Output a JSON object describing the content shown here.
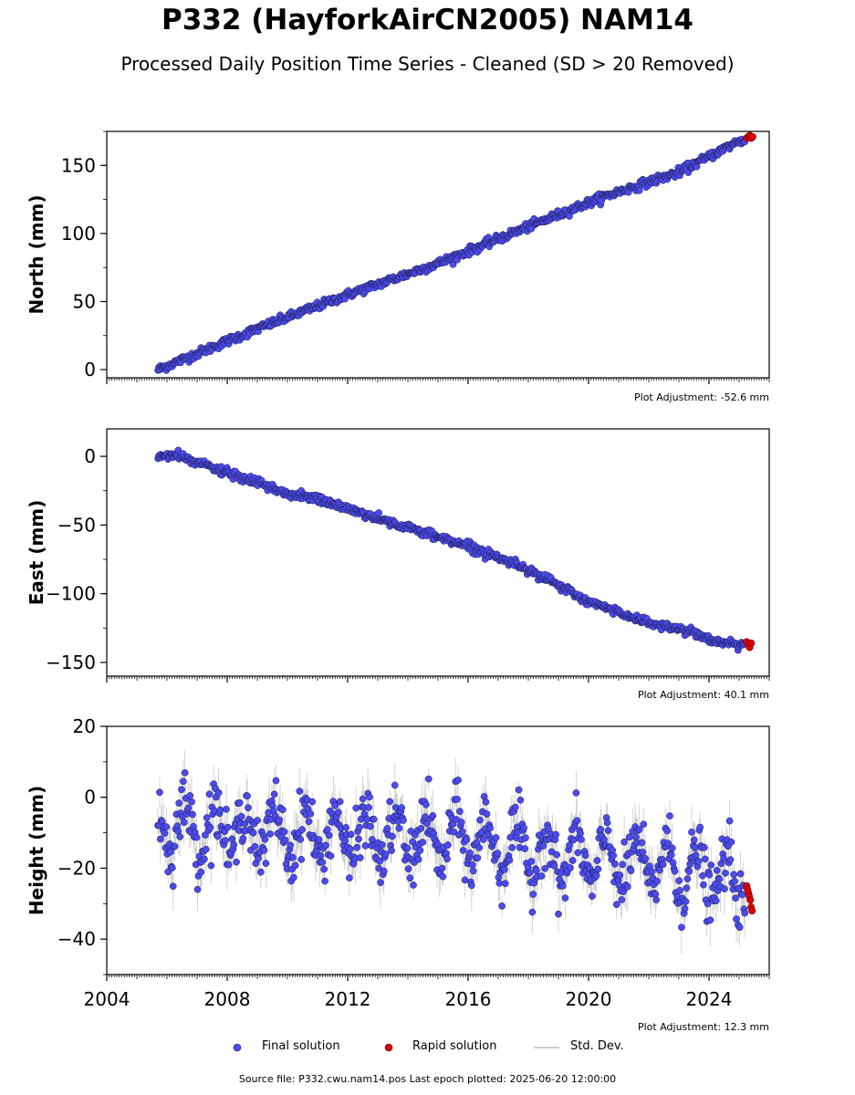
{
  "title": "P332 (HayforkAirCN2005) NAM14",
  "subtitle": "Processed Daily Position Time Series - Cleaned (SD > 20 Removed)",
  "source": "Source file: P332.cwu.nam14.pos  Last epoch plotted: 2025-06-20 12:00:00",
  "legend": {
    "final": "Final solution",
    "rapid": "Rapid solution",
    "std": "Std. Dev."
  },
  "colors": {
    "final": "#4b4bf0",
    "rapid": "#e00000",
    "std": "#bdbdbd"
  },
  "x_tick_labels": [
    "2004",
    "2008",
    "2012",
    "2016",
    "2020",
    "2024"
  ],
  "chart_data": [
    {
      "type": "scatter",
      "ylabel": "North (mm)",
      "adjustment": "Plot Adjustment: -52.6 mm",
      "xlim": [
        2004,
        2026
      ],
      "ylim": [
        -6,
        175
      ],
      "yticks": [
        0,
        50,
        100,
        150
      ],
      "ytick_labels": [
        "0",
        "50",
        "100",
        "150"
      ],
      "x_ticks": [
        2004,
        2008,
        2012,
        2016,
        2020,
        2024
      ],
      "x_tick_labels_shown": false,
      "series": [
        {
          "name": "Final solution",
          "trend_points": [
            [
              2005.7,
              0
            ],
            [
              2009.0,
              30
            ],
            [
              2012.0,
              55
            ],
            [
              2015.0,
              78
            ],
            [
              2018.0,
              105
            ],
            [
              2020.5,
              127
            ],
            [
              2023.0,
              145
            ],
            [
              2025.0,
              168
            ]
          ],
          "x_range": [
            2005.7,
            2025.2
          ],
          "noise_mm": 1.5
        },
        {
          "name": "Rapid solution",
          "x": [
            2025.25,
            2025.3,
            2025.35,
            2025.4,
            2025.45
          ],
          "y": [
            170,
            171,
            172,
            170,
            171
          ]
        }
      ]
    },
    {
      "type": "scatter",
      "ylabel": "East (mm)",
      "adjustment": "Plot Adjustment: 40.1 mm",
      "xlim": [
        2004,
        2026
      ],
      "ylim": [
        -160,
        20
      ],
      "yticks": [
        0,
        -50,
        -100,
        -150
      ],
      "ytick_labels": [
        "0",
        "−50",
        "−100",
        "−150"
      ],
      "x_ticks": [
        2004,
        2008,
        2012,
        2016,
        2020,
        2024
      ],
      "x_tick_labels_shown": false,
      "series": [
        {
          "name": "Final solution",
          "trend_points": [
            [
              2005.7,
              0
            ],
            [
              2006.3,
              1
            ],
            [
              2008.0,
              -12
            ],
            [
              2010.0,
              -27
            ],
            [
              2011.0,
              -31
            ],
            [
              2014.0,
              -52
            ],
            [
              2016.0,
              -65
            ],
            [
              2018.0,
              -82
            ],
            [
              2020.0,
              -106
            ],
            [
              2022.0,
              -121
            ],
            [
              2023.5,
              -128
            ],
            [
              2024.5,
              -137
            ],
            [
              2025.2,
              -136
            ]
          ],
          "x_range": [
            2005.7,
            2025.2
          ],
          "noise_mm": 1.5
        },
        {
          "name": "Rapid solution",
          "x": [
            2025.25,
            2025.3,
            2025.35,
            2025.4
          ],
          "y": [
            -135,
            -137,
            -139,
            -136
          ]
        }
      ]
    },
    {
      "type": "scatter",
      "ylabel": "Height (mm)",
      "adjustment": "Plot Adjustment: 12.3 mm",
      "xlim": [
        2004,
        2026
      ],
      "ylim": [
        -50,
        20
      ],
      "yticks": [
        20,
        0,
        -20,
        -40
      ],
      "ytick_labels": [
        "20",
        "0",
        "−20",
        "−40"
      ],
      "x_ticks": [
        2004,
        2008,
        2012,
        2016,
        2020,
        2024
      ],
      "x_tick_labels_shown": true,
      "series": [
        {
          "name": "Final solution",
          "baseline_points": [
            [
              2005.7,
              -8
            ],
            [
              2012.0,
              -11
            ],
            [
              2016.0,
              -12
            ],
            [
              2019.0,
              -17
            ],
            [
              2022.0,
              -19
            ],
            [
              2025.2,
              -24
            ]
          ],
          "seasonal_amplitude_mm": 7,
          "x_range": [
            2005.7,
            2025.2
          ],
          "noise_mm": 4
        },
        {
          "name": "Rapid solution",
          "x": [
            2025.25,
            2025.28,
            2025.31,
            2025.34,
            2025.37,
            2025.4,
            2025.43
          ],
          "y": [
            -25,
            -26,
            -27,
            -28,
            -29,
            -31,
            -32
          ]
        }
      ]
    }
  ]
}
